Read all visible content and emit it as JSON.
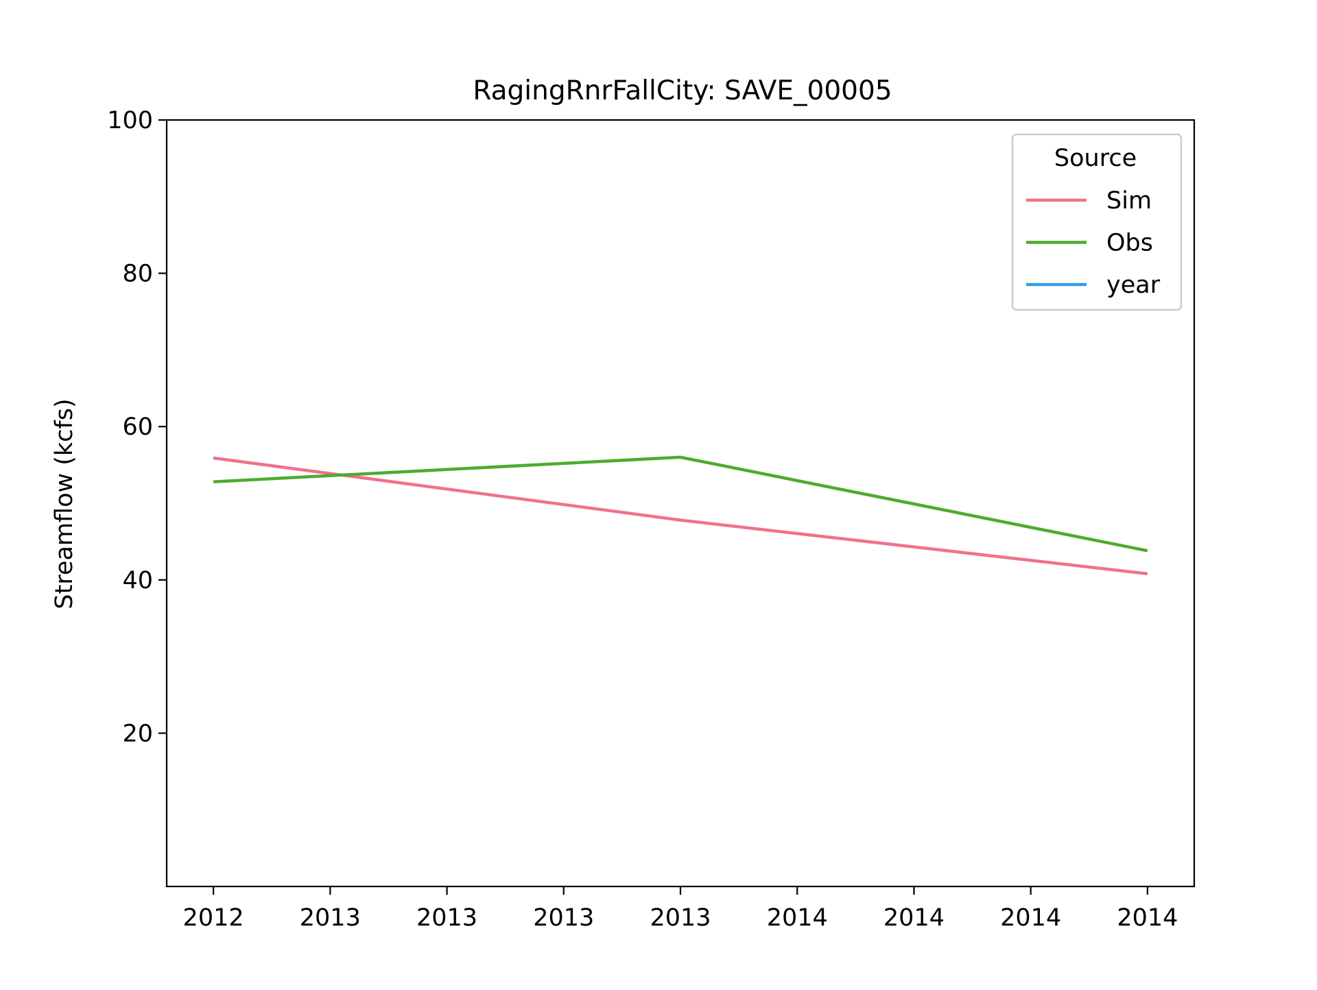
{
  "chart_data": {
    "type": "line",
    "title": "RagingRnrFallCity: SAVE_00005",
    "xlabel": "",
    "ylabel": "Streamflow (kcfs)",
    "ylim": [
      0,
      100
    ],
    "yticks": [
      20,
      40,
      60,
      80,
      100
    ],
    "x_tick_labels": [
      "2012",
      "2013",
      "2013",
      "2013",
      "2013",
      "2014",
      "2014",
      "2014",
      "2014"
    ],
    "grid": false,
    "legend": {
      "title": "Source",
      "position": "top-right",
      "entries": [
        {
          "label": "Sim",
          "color": "#f0718a"
        },
        {
          "label": "Obs",
          "color": "#4dab2f"
        },
        {
          "label": "year",
          "color": "#3a9be0"
        }
      ]
    },
    "x_range": [
      -0.4,
      8.4
    ],
    "series": [
      {
        "name": "Sim",
        "color": "#f0718a",
        "points": [
          {
            "x": 0,
            "y": 55.9
          },
          {
            "x": 4,
            "y": 47.8
          },
          {
            "x": 8,
            "y": 40.8
          }
        ]
      },
      {
        "name": "Obs",
        "color": "#4dab2f",
        "points": [
          {
            "x": 0,
            "y": 52.8
          },
          {
            "x": 4,
            "y": 56.0
          },
          {
            "x": 8,
            "y": 43.8
          }
        ]
      },
      {
        "name": "year",
        "color": "#3a9be0",
        "points": []
      }
    ]
  }
}
